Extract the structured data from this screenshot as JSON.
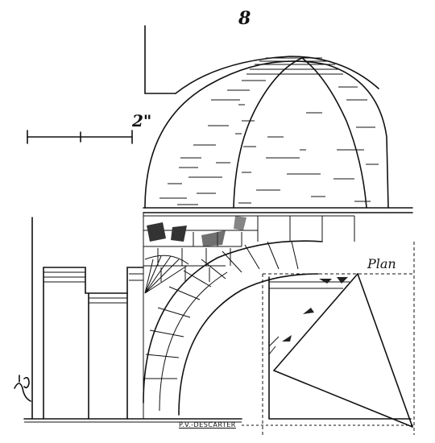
{
  "figure": {
    "number": "8",
    "scale_label": "2\"",
    "plan_label": "Plan",
    "credit": "P.V.-DESCARTER"
  },
  "colors": {
    "ink": "#111111",
    "paper": "#ffffff"
  },
  "icons": [
    "monogram-icon"
  ]
}
